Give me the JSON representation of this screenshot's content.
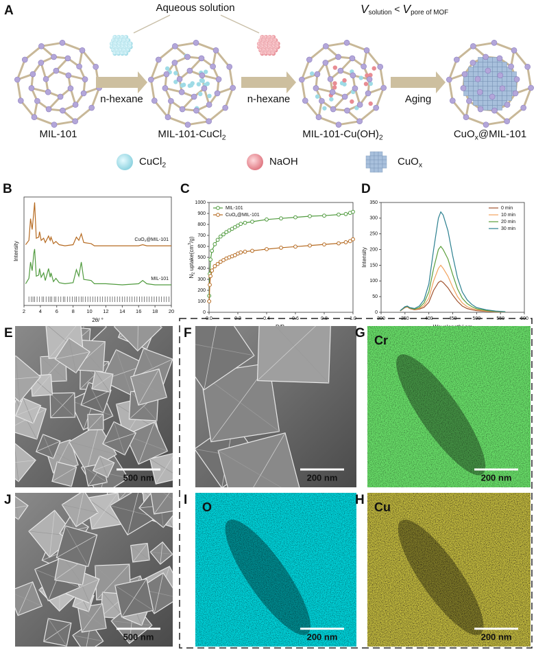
{
  "panel_a": {
    "label": "A",
    "solution_label": "Aqueous solution",
    "condition": [
      {
        "it": "V"
      },
      {
        "sub": "solution"
      },
      " < ",
      {
        "it": "V"
      },
      {
        "sub": "pore of MOF"
      }
    ],
    "steps": [
      [
        "MIL-101"
      ],
      [
        "MIL-101-CuCl",
        {
          "sub": "2"
        }
      ],
      [
        "MIL-101-Cu(OH)",
        {
          "sub": "2"
        }
      ],
      [
        "CuO",
        {
          "sub": "x"
        },
        "@MIL-101"
      ]
    ],
    "arrows": [
      "n-hexane",
      "n-hexane",
      "Aging"
    ],
    "legend": [
      [
        "CuCl",
        {
          "sub": "2"
        }
      ],
      [
        "NaOH"
      ],
      [
        "CuO",
        {
          "sub": "x"
        }
      ]
    ]
  },
  "chart_data": [
    {
      "type": "line",
      "panel_label": "B",
      "x_label": "2θ/ °",
      "y_label": "Intensity",
      "x": [
        2.2,
        2.6,
        2.8,
        3.0,
        3.2,
        3.3,
        3.5,
        3.8,
        3.9,
        4.1,
        4.4,
        4.6,
        5.0,
        5.2,
        5.3,
        5.6,
        5.9,
        6.3,
        7,
        8,
        8.4,
        8.7,
        9.0,
        9.3,
        10.2,
        10.6,
        12,
        14,
        16,
        16.5,
        17,
        18,
        20
      ],
      "xlim": [
        2,
        20
      ],
      "xticks": [
        2,
        4,
        6,
        8,
        10,
        12,
        14,
        16,
        18,
        20
      ],
      "ylim": [
        0,
        100
      ],
      "legend": "inline",
      "series": [
        {
          "name": [
            "CuO",
            {
              "sub": "x"
            },
            "@MIL-101"
          ],
          "color": "#b5691f",
          "values": [
            56,
            60,
            80,
            70,
            86,
            95,
            62,
            63,
            68,
            60,
            62,
            58,
            64,
            60,
            63,
            57,
            59,
            56,
            55,
            56,
            63,
            60,
            66,
            58,
            57,
            55,
            55,
            55,
            55,
            56,
            55,
            55,
            55
          ]
        },
        {
          "name": [
            "MIL-101"
          ],
          "color": "#4f9a3d",
          "values": [
            20,
            25,
            40,
            32,
            48,
            52,
            27,
            28,
            34,
            26,
            30,
            23,
            34,
            26,
            30,
            22,
            25,
            21,
            20,
            21,
            33,
            27,
            40,
            24,
            23,
            20,
            20,
            19,
            20,
            23,
            20,
            19,
            19
          ]
        }
      ],
      "reference_peaks": [
        2.6,
        2.9,
        3.1,
        3.3,
        3.6,
        3.9,
        4.2,
        4.4,
        4.7,
        5.0,
        5.2,
        5.4,
        5.7,
        5.9,
        6.2,
        6.5,
        6.8,
        7.0,
        7.3,
        7.6,
        7.9,
        8.2,
        8.4,
        8.7,
        9.0,
        9.2,
        9.5,
        9.8,
        10.1,
        10.4,
        10.7,
        11.0,
        11.3,
        11.6,
        11.9,
        12.2,
        12.5,
        12.8,
        13.1,
        13.4,
        13.7,
        14.0,
        14.3,
        14.6,
        14.9,
        15.2,
        15.5,
        15.8,
        16.1,
        16.4,
        16.7,
        17.0,
        17.3,
        17.6,
        17.9,
        18.2,
        18.5,
        18.8,
        19.1,
        19.4,
        19.7
      ],
      "reference_color": "#555555"
    },
    {
      "type": "line",
      "panel_label": "C",
      "x_label": [
        "P/P",
        {
          "sub": "0"
        }
      ],
      "y_label": [
        "N",
        {
          "sub": "2"
        },
        " uptake(cm",
        {
          "sup": "3"
        },
        "/g)"
      ],
      "x": [
        0.001,
        0.005,
        0.01,
        0.02,
        0.04,
        0.06,
        0.08,
        0.1,
        0.12,
        0.14,
        0.16,
        0.18,
        0.2,
        0.22,
        0.25,
        0.3,
        0.4,
        0.5,
        0.6,
        0.7,
        0.8,
        0.9,
        0.95,
        0.98,
        1.0
      ],
      "xlim": [
        0,
        1
      ],
      "xticks": [
        {
          "value": 0,
          "label": "0.0"
        },
        0.2,
        0.4,
        0.6,
        0.8,
        {
          "value": 1,
          "label": "1.0"
        }
      ],
      "ylim": [
        0,
        1000
      ],
      "yticks": [
        0,
        100,
        200,
        300,
        400,
        500,
        600,
        700,
        800,
        900,
        1000
      ],
      "markers": true,
      "legend": "upper left",
      "series": [
        {
          "name": [
            "MIL-101"
          ],
          "color": "#4f9a3d",
          "values": [
            150,
            350,
            480,
            560,
            620,
            660,
            690,
            710,
            730,
            745,
            760,
            775,
            790,
            805,
            815,
            825,
            845,
            855,
            865,
            875,
            880,
            890,
            895,
            905,
            915
          ]
        },
        {
          "name": [
            "CuO",
            {
              "sub": "x"
            },
            "@MIL-101"
          ],
          "color": "#b5691f",
          "values": [
            100,
            250,
            330,
            380,
            420,
            440,
            460,
            475,
            490,
            500,
            510,
            520,
            535,
            545,
            552,
            560,
            575,
            588,
            598,
            608,
            618,
            628,
            638,
            648,
            665
          ]
        }
      ]
    },
    {
      "type": "line",
      "panel_label": "D",
      "x_label": "Wavelength/ nm",
      "y_label": "Intensity",
      "x": [
        340,
        350,
        355,
        360,
        370,
        380,
        390,
        400,
        410,
        420,
        425,
        430,
        440,
        450,
        460,
        470,
        480,
        490,
        500,
        520,
        540,
        560
      ],
      "xlim": [
        300,
        600
      ],
      "xticks": [
        300,
        350,
        400,
        450,
        500,
        550,
        600
      ],
      "ylim": [
        0,
        350
      ],
      "yticks": [
        0,
        50,
        100,
        150,
        200,
        250,
        300,
        350
      ],
      "legend": "upper right",
      "series": [
        {
          "name": [
            "0 min"
          ],
          "color": "#a0522d",
          "values": [
            4,
            15,
            17,
            12,
            8,
            10,
            16,
            32,
            70,
            95,
            100,
            95,
            78,
            55,
            35,
            20,
            12,
            8,
            5,
            3,
            2,
            1
          ]
        },
        {
          "name": [
            "10 min"
          ],
          "color": "#f2a25c",
          "values": [
            4,
            16,
            18,
            13,
            9,
            12,
            22,
            45,
            100,
            140,
            150,
            140,
            115,
            80,
            50,
            30,
            18,
            12,
            8,
            4,
            2,
            1
          ]
        },
        {
          "name": [
            "20 min"
          ],
          "color": "#5a9e3a",
          "values": [
            5,
            17,
            19,
            14,
            10,
            15,
            30,
            65,
            140,
            200,
            210,
            200,
            170,
            120,
            75,
            45,
            28,
            18,
            11,
            6,
            3,
            2
          ]
        },
        {
          "name": [
            "30 min"
          ],
          "color": "#2a7f8f",
          "values": [
            5,
            18,
            20,
            15,
            12,
            20,
            40,
            90,
            200,
            300,
            320,
            310,
            260,
            180,
            110,
            65,
            40,
            25,
            15,
            8,
            4,
            2
          ]
        }
      ]
    }
  ],
  "images": [
    {
      "label": "E",
      "scale_bar": "500 nm"
    },
    {
      "label": "F",
      "scale_bar": "200 nm"
    },
    {
      "label": "G",
      "element": "Cr",
      "scale_bar": "200 nm"
    },
    {
      "label": "J",
      "scale_bar": "500 nm"
    },
    {
      "label": "I",
      "element": "O",
      "scale_bar": "200 nm"
    },
    {
      "label": "H",
      "element": "Cu",
      "scale_bar": "200 nm"
    }
  ]
}
